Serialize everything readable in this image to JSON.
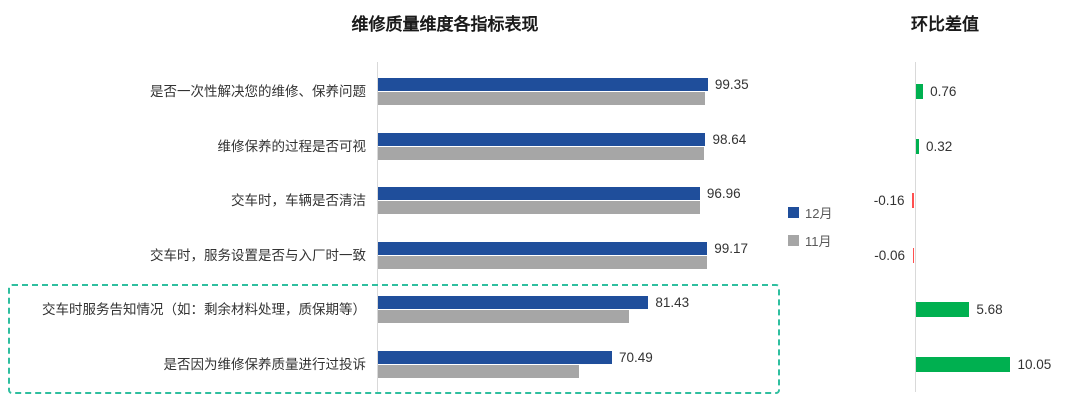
{
  "style": {
    "background": "#ffffff",
    "label_color": "#333333",
    "value_color": "#333333",
    "axis_color": "#d9d9d9",
    "highlight_box_color": "#2fbf9f",
    "legend_text_color": "#595959"
  },
  "chart_data": [
    {
      "type": "bar",
      "orientation": "horizontal",
      "title": "维修质量维度各指标表现",
      "categories": [
        "是否一次性解决您的维修、保养问题",
        "维修保养的过程是否可视",
        "交车时，车辆是否清洁",
        "交车时，服务设置是否与入厂时一致",
        "交车时服务告知情况（如：剩余材料处理，质保期等）",
        "是否因为维修保养质量进行过投诉"
      ],
      "series": [
        {
          "name": "12月",
          "color": "#1f4e9b",
          "values": [
            99.35,
            98.64,
            96.96,
            99.17,
            81.43,
            70.49
          ]
        },
        {
          "name": "11月",
          "color": "#a6a6a6",
          "values": [
            98.59,
            98.32,
            97.12,
            99.23,
            75.75,
            60.44
          ]
        }
      ],
      "xlim": [
        0,
        120
      ],
      "legend_position": "right",
      "grid": false,
      "highlight_note": "最后两项（交车时服务告知情况、是否因为维修保养质量进行过投诉）用绿色虚线框标出"
    },
    {
      "type": "bar",
      "orientation": "horizontal",
      "title": "环比差值",
      "categories": [
        "是否一次性解决您的维修、保养问题",
        "维修保养的过程是否可视",
        "交车时，车辆是否清洁",
        "交车时，服务设置是否与入厂时一致",
        "交车时服务告知情况（如：剩余材料处理，质保期等）",
        "是否因为维修保养质量进行过投诉"
      ],
      "values": [
        0.76,
        0.32,
        -0.16,
        -0.06,
        5.68,
        10.05
      ],
      "positive_color": "#00b050",
      "negative_color": "#ff5050",
      "xlim": [
        -2,
        12
      ],
      "grid": false
    }
  ]
}
